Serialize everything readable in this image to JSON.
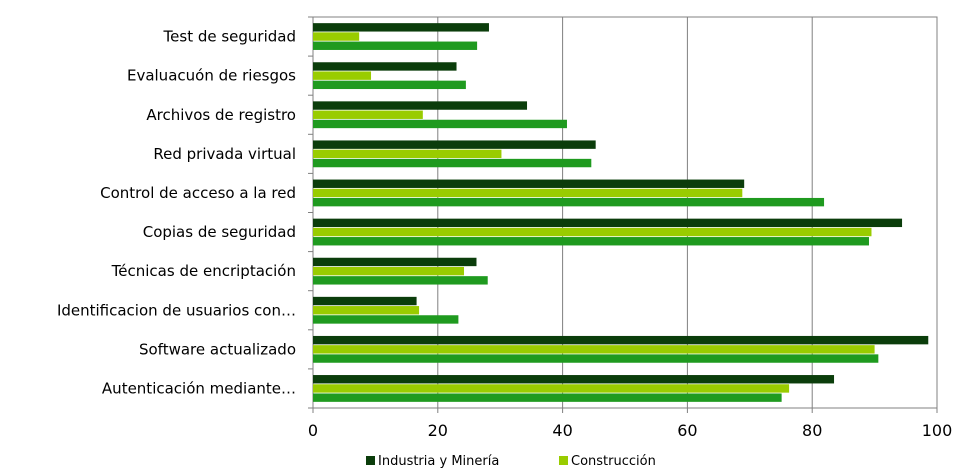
{
  "chart_data": {
    "type": "bar",
    "orientation": "horizontal",
    "categories": [
      "Test de seguridad",
      "Evaluacuón de riesgos",
      "Archivos de registro",
      "Red privada virtual",
      "Control de acceso a la red",
      "Copias de seguridad",
      "Técnicas de encriptación",
      "Identificacion de usuarios con…",
      "Software actualizado",
      "Autenticación mediante…"
    ],
    "series": [
      {
        "name": "Industria y Minería",
        "color": "#0b3d0b",
        "values": [
          28.2,
          23.0,
          34.3,
          45.3,
          69.1,
          94.4,
          26.2,
          16.6,
          98.6,
          83.5
        ]
      },
      {
        "name": "Construcción",
        "color": "#99cc00",
        "values": [
          7.4,
          9.3,
          17.6,
          30.2,
          68.8,
          89.5,
          24.2,
          17.0,
          90.0,
          76.3
        ]
      },
      {
        "name": "",
        "color": "#1f9a1f",
        "values": [
          26.3,
          24.5,
          40.7,
          44.6,
          81.9,
          89.1,
          28.0,
          23.3,
          90.6,
          75.1
        ]
      }
    ],
    "xlim": [
      0,
      100
    ],
    "xticks": [
      "0",
      "20",
      "40",
      "60",
      "80",
      "100"
    ],
    "grid": true,
    "legend_position": "bottom",
    "legend": [
      "Industria y Minería",
      "Construcción"
    ]
  }
}
